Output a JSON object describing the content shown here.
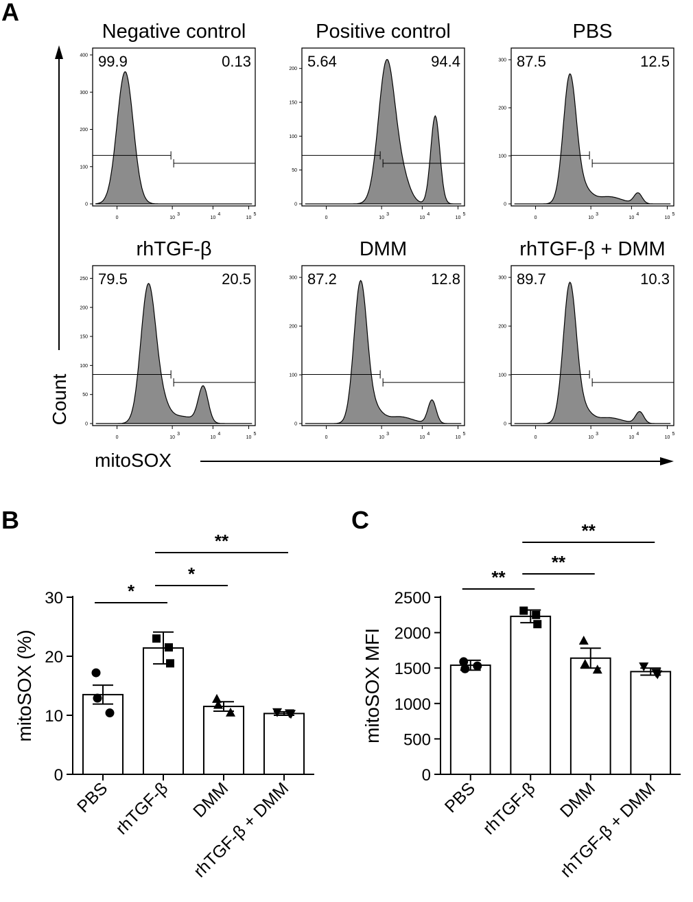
{
  "figure": {
    "panel_a_label": "A",
    "panel_b_label": "B",
    "panel_c_label": "C",
    "y_axis_label": "Count",
    "x_axis_label": "mitoSOX",
    "x_tick_labels": [
      "0",
      "10",
      "10",
      "10"
    ],
    "x_tick_exponents": [
      "",
      "3",
      "4",
      "5"
    ]
  },
  "chart_data": [
    {
      "type": "area",
      "title": "Negative control",
      "gate_left": "99.9",
      "gate_right": "0.13",
      "ylim": [
        0,
        400
      ],
      "yticks": [
        "0",
        "100",
        "200",
        "300",
        "400"
      ],
      "peaks": [
        {
          "pos": 0.2,
          "height": 355,
          "width": 0.05
        }
      ]
    },
    {
      "type": "area",
      "title": "Positive control",
      "gate_left": "5.64",
      "gate_right": "94.4",
      "ylim": [
        0,
        220
      ],
      "yticks": [
        "0",
        "50",
        "100",
        "150",
        "200"
      ],
      "peaks": [
        {
          "pos": 0.52,
          "height": 205,
          "width": 0.05
        },
        {
          "pos": 0.61,
          "height": 40,
          "width": 0.05
        },
        {
          "pos": 0.82,
          "height": 130,
          "width": 0.028
        }
      ]
    },
    {
      "type": "area",
      "title": "PBS",
      "gate_left": "87.5",
      "gate_right": "12.5",
      "ylim": [
        0,
        310
      ],
      "yticks": [
        "0",
        "100",
        "200",
        "300"
      ],
      "peaks": [
        {
          "pos": 0.36,
          "height": 262,
          "width": 0.04
        },
        {
          "pos": 0.44,
          "height": 30,
          "width": 0.05
        },
        {
          "pos": 0.6,
          "height": 15,
          "width": 0.08
        },
        {
          "pos": 0.78,
          "height": 22,
          "width": 0.025
        }
      ]
    },
    {
      "type": "area",
      "title": "rhTGF-β",
      "gate_left": "79.5",
      "gate_right": "20.5",
      "ylim": [
        0,
        260
      ],
      "yticks": [
        "0",
        "50",
        "100",
        "150",
        "200",
        "250"
      ],
      "peaks": [
        {
          "pos": 0.34,
          "height": 225,
          "width": 0.045
        },
        {
          "pos": 0.41,
          "height": 40,
          "width": 0.05
        },
        {
          "pos": 0.55,
          "height": 12,
          "width": 0.08
        },
        {
          "pos": 0.68,
          "height": 62,
          "width": 0.03
        }
      ]
    },
    {
      "type": "area",
      "title": "DMM",
      "gate_left": "87.2",
      "gate_right": "12.8",
      "ylim": [
        0,
        310
      ],
      "yticks": [
        "0",
        "100",
        "200",
        "300"
      ],
      "peaks": [
        {
          "pos": 0.36,
          "height": 285,
          "width": 0.04
        },
        {
          "pos": 0.44,
          "height": 30,
          "width": 0.05
        },
        {
          "pos": 0.6,
          "height": 14,
          "width": 0.08
        },
        {
          "pos": 0.8,
          "height": 48,
          "width": 0.025
        }
      ]
    },
    {
      "type": "area",
      "title": "rhTGF-β + DMM",
      "gate_left": "89.7",
      "gate_right": "10.3",
      "ylim": [
        0,
        310
      ],
      "yticks": [
        "0",
        "100",
        "200",
        "300"
      ],
      "peaks": [
        {
          "pos": 0.36,
          "height": 282,
          "width": 0.04
        },
        {
          "pos": 0.44,
          "height": 28,
          "width": 0.05
        },
        {
          "pos": 0.6,
          "height": 12,
          "width": 0.08
        },
        {
          "pos": 0.79,
          "height": 24,
          "width": 0.025
        }
      ]
    },
    {
      "type": "bar",
      "ylabel": "mitoSOX (%)",
      "categories": [
        "PBS",
        "rhTGF-β",
        "DMM",
        "rhTGF-β + DMM"
      ],
      "values": [
        13.5,
        21.4,
        11.5,
        10.3
      ],
      "errors": [
        1.6,
        2.7,
        0.8,
        0.3
      ],
      "points": [
        [
          17.2,
          12.9,
          10.4
        ],
        [
          23.0,
          21.5,
          18.8
        ],
        [
          12.8,
          11.8,
          10.5
        ],
        [
          10.5,
          10.3,
          10.2
        ]
      ],
      "markers": [
        "circle",
        "square",
        "triangle",
        "triangle-down"
      ],
      "ylim": [
        0,
        30
      ],
      "yticks": [
        "0",
        "10",
        "20",
        "30"
      ],
      "significance": [
        {
          "from": 0,
          "to": 1,
          "label": "*"
        },
        {
          "from": 1,
          "to": 2,
          "label": "*"
        },
        {
          "from": 1,
          "to": 3,
          "label": "**"
        }
      ]
    },
    {
      "type": "bar",
      "ylabel": "mitoSOX MFI",
      "categories": [
        "PBS",
        "rhTGF-β",
        "DMM",
        "rhTGF-β + DMM"
      ],
      "values": [
        1540,
        2230,
        1640,
        1450
      ],
      "errors": [
        70,
        90,
        140,
        50
      ],
      "points": [
        [
          1590,
          1490,
          1530
        ],
        [
          2310,
          2250,
          2120
        ],
        [
          1890,
          1560,
          1480
        ],
        [
          1520,
          1430,
          1410
        ]
      ],
      "markers": [
        "circle",
        "square",
        "triangle",
        "triangle-down"
      ],
      "ylim": [
        0,
        2500
      ],
      "yticks": [
        "0",
        "500",
        "1000",
        "1500",
        "2000",
        "2500"
      ],
      "significance": [
        {
          "from": 0,
          "to": 1,
          "label": "**"
        },
        {
          "from": 1,
          "to": 2,
          "label": "**"
        },
        {
          "from": 1,
          "to": 3,
          "label": "**"
        }
      ]
    }
  ]
}
